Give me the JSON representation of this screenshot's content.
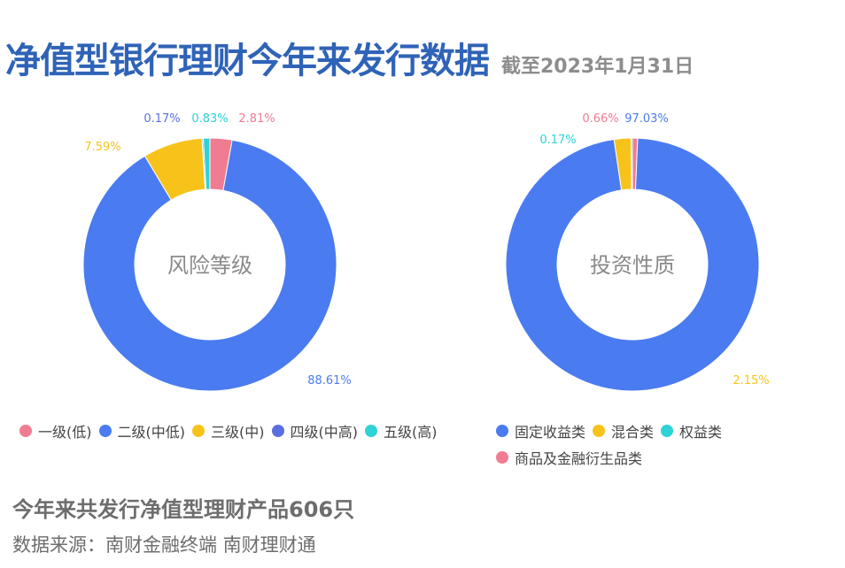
{
  "header": {
    "title": "净值型银行理财今年来发行数据",
    "subtitle": "截至2023年1月31日"
  },
  "chart_data": [
    {
      "type": "pie",
      "center_label": "风险等级",
      "labels": [
        "一级(低)",
        "二级(中低)",
        "三级(中)",
        "四级(中高)",
        "五级(高)"
      ],
      "values": [
        2.81,
        88.61,
        7.59,
        0.17,
        0.83
      ],
      "value_labels": [
        "2.81%",
        "88.61%",
        "7.59%",
        "0.17%",
        "0.83%"
      ],
      "colors": [
        "#f07c92",
        "#4a7bf0",
        "#f7c31b",
        "#5a6fe0",
        "#2fd2d6"
      ],
      "order": [
        0,
        1,
        2,
        3,
        4
      ]
    },
    {
      "type": "pie",
      "center_label": "投资性质",
      "labels": [
        "固定收益类",
        "混合类",
        "权益类",
        "商品及金融衍生品类"
      ],
      "values": [
        97.03,
        2.15,
        0.17,
        0.66
      ],
      "value_labels": [
        "97.03%",
        "2.15%",
        "0.17%",
        "0.66%"
      ],
      "colors": [
        "#4a7bf0",
        "#f7c31b",
        "#2fd2d6",
        "#f07c92"
      ],
      "order": [
        3,
        0,
        1,
        2
      ]
    }
  ],
  "footer": {
    "summary": "今年来共发行净值型理财产品606只",
    "source": "数据来源：南财金融终端 南财理财通"
  }
}
